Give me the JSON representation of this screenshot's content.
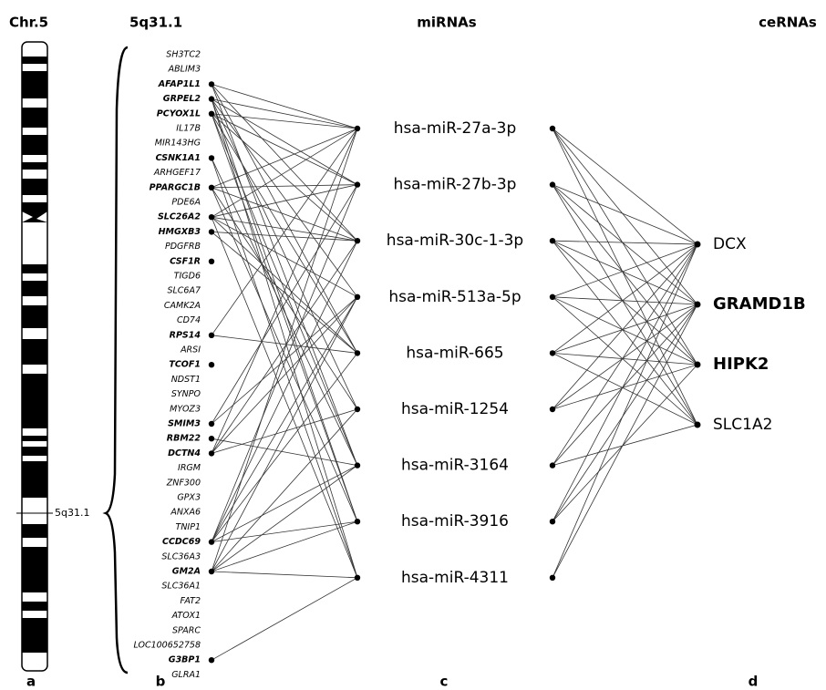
{
  "headers": {
    "chromosome": "Chr.5",
    "region": "5q31.1",
    "mirnas": "miRNAs",
    "cernas": "ceRNAs"
  },
  "band_label": "5q31.1",
  "panel_letters": [
    "a",
    "b",
    "c",
    "d"
  ],
  "genes": [
    {
      "label": "SH3TC2"
    },
    {
      "label": "ABLIM3"
    },
    {
      "label": "AFAP1L1",
      "bold": true,
      "targets": [
        0,
        2,
        4,
        6
      ]
    },
    {
      "label": "GRPEL2",
      "bold": true,
      "targets": [
        0,
        1,
        3,
        5,
        7,
        8
      ]
    },
    {
      "label": "PCYOX1L",
      "bold": true,
      "targets": [
        0,
        1,
        2,
        4,
        6,
        7
      ]
    },
    {
      "label": "IL17B"
    },
    {
      "label": "MIR143HG"
    },
    {
      "label": "CSNK1A1",
      "bold": true,
      "targets": [
        6,
        8
      ]
    },
    {
      "label": "ARHGEF17"
    },
    {
      "label": "PPARGC1B",
      "bold": true,
      "targets": [
        0,
        1,
        2,
        5,
        7
      ]
    },
    {
      "label": "PDE6A"
    },
    {
      "label": "SLC26A2",
      "bold": true,
      "targets": [
        0,
        1,
        2,
        3,
        4,
        8
      ]
    },
    {
      "label": "HMGXB3",
      "bold": true,
      "targets": [
        2,
        4
      ]
    },
    {
      "label": "PDGFRB"
    },
    {
      "label": "CSF1R",
      "bold": true
    },
    {
      "label": "TIGD6"
    },
    {
      "label": "SLC6A7"
    },
    {
      "label": "CAMK2A"
    },
    {
      "label": "CD74"
    },
    {
      "label": "RPS14",
      "bold": true,
      "targets": [
        0,
        4
      ]
    },
    {
      "label": "ARSI"
    },
    {
      "label": "TCOF1",
      "bold": true
    },
    {
      "label": "NDST1"
    },
    {
      "label": "SYNPO"
    },
    {
      "label": "MYOZ3"
    },
    {
      "label": "SMIM3",
      "bold": true,
      "targets": [
        1,
        3
      ]
    },
    {
      "label": "RBM22",
      "bold": true,
      "targets": [
        6
      ]
    },
    {
      "label": "DCTN4",
      "bold": true,
      "targets": [
        0,
        2,
        3,
        5
      ]
    },
    {
      "label": "IRGM"
    },
    {
      "label": "ZNF300"
    },
    {
      "label": "GPX3"
    },
    {
      "label": "ANXA6"
    },
    {
      "label": "TNIP1"
    },
    {
      "label": "CCDC69",
      "bold": true,
      "targets": [
        1,
        2,
        3,
        4,
        6,
        7
      ]
    },
    {
      "label": "SLC36A3"
    },
    {
      "label": "GM2A",
      "bold": true,
      "targets": [
        0,
        3,
        5,
        6,
        7,
        8
      ]
    },
    {
      "label": "SLC36A1"
    },
    {
      "label": "FAT2"
    },
    {
      "label": "ATOX1"
    },
    {
      "label": "SPARC"
    },
    {
      "label": "LOC100652758"
    },
    {
      "label": "G3BP1",
      "bold": true,
      "targets": [
        8
      ]
    },
    {
      "label": "GLRA1"
    }
  ],
  "mirnas": [
    {
      "label": "hsa-miR-27a-3p",
      "targets": [
        0,
        1,
        2,
        3
      ]
    },
    {
      "label": "hsa-miR-27b-3p",
      "targets": [
        0,
        1,
        2,
        3
      ]
    },
    {
      "label": "hsa-miR-30c-1-3p",
      "targets": [
        0,
        1,
        2,
        3
      ]
    },
    {
      "label": "hsa-miR-513a-5p",
      "targets": [
        0,
        1,
        2,
        3
      ]
    },
    {
      "label": "hsa-miR-665",
      "targets": [
        0,
        1,
        2,
        3
      ]
    },
    {
      "label": "hsa-miR-1254",
      "targets": [
        0,
        1,
        2
      ]
    },
    {
      "label": "hsa-miR-3164",
      "targets": [
        0,
        1,
        3
      ]
    },
    {
      "label": "hsa-miR-3916",
      "targets": [
        0,
        1,
        2
      ]
    },
    {
      "label": "hsa-miR-4311",
      "targets": [
        0,
        1
      ]
    }
  ],
  "cernas": [
    {
      "label": "DCX"
    },
    {
      "label": "GRAMD1B",
      "bold": true
    },
    {
      "label": "HIPK2",
      "bold": true
    },
    {
      "label": "SLC1A2"
    }
  ]
}
